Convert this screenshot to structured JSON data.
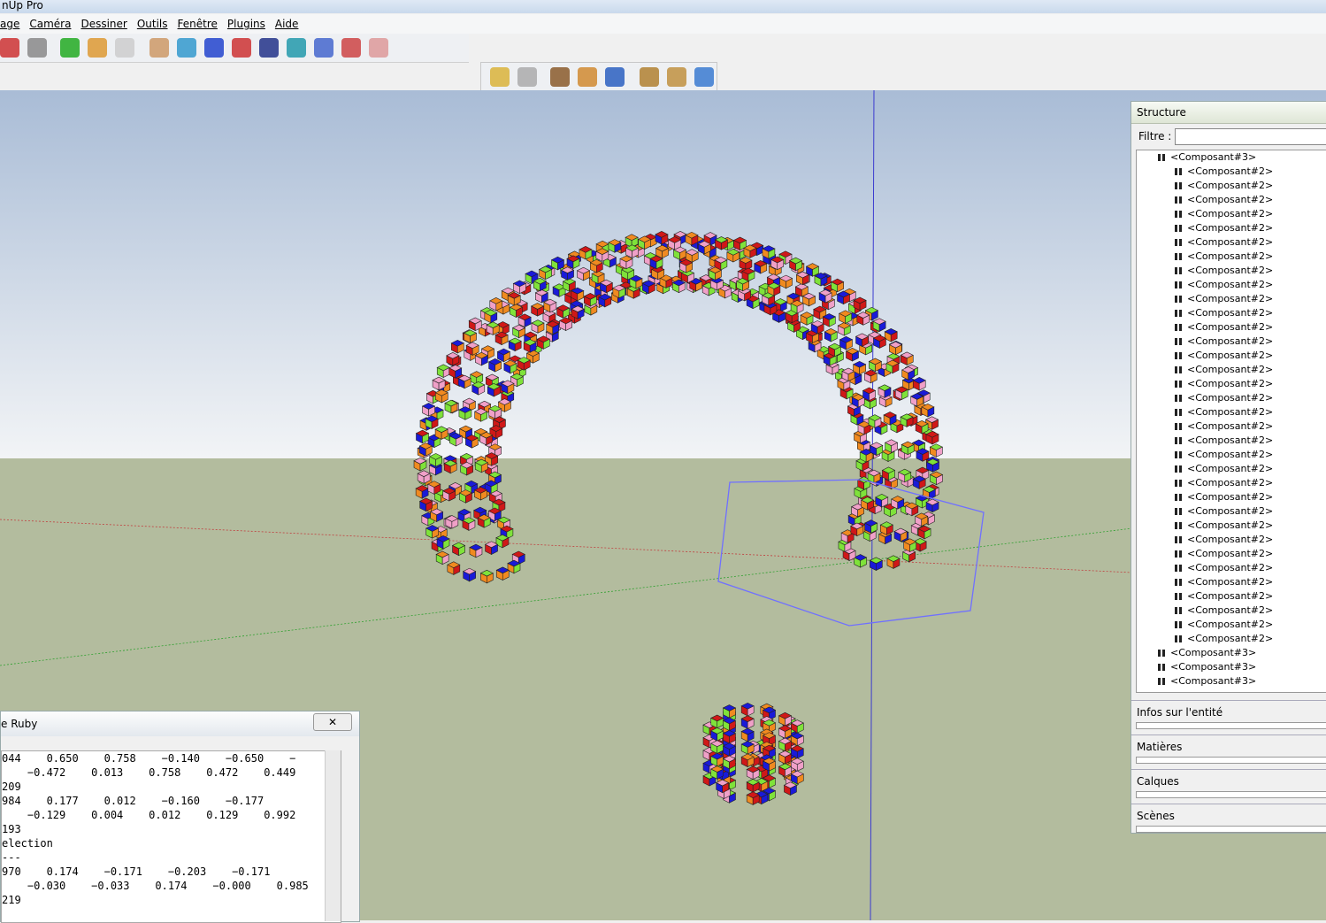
{
  "window": {
    "title": "nUp Pro"
  },
  "menu": {
    "items": [
      "age",
      "Caméra",
      "Dessiner",
      "Outils",
      "Fenêtre",
      "Plugins",
      "Aide"
    ]
  },
  "structure": {
    "title": "Structure",
    "filter_label": "Filtre :"
  },
  "tree": {
    "root": {
      "label": "<Composant#3>",
      "children": [
        "<Composant#2>",
        "<Composant#2>",
        "<Composant#2>",
        "<Composant#2>",
        "<Composant#2>",
        "<Composant#2>",
        "<Composant#2>",
        "<Composant#2>",
        "<Composant#2>",
        "<Composant#2>",
        "<Composant#2>",
        "<Composant#2>",
        "<Composant#2>",
        "<Composant#2>",
        "<Composant#2>",
        "<Composant#2>",
        "<Composant#2>",
        "<Composant#2>",
        "<Composant#2>",
        "<Composant#2>",
        "<Composant#2>",
        "<Composant#2>",
        "<Composant#2>",
        "<Composant#2>",
        "<Composant#2>",
        "<Composant#2>",
        "<Composant#2>",
        "<Composant#2>",
        "<Composant#2>",
        "<Composant#2>",
        "<Composant#2>",
        "<Composant#2>",
        "<Composant#2>",
        "<Composant#2>"
      ]
    },
    "collapsed": [
      "<Composant#3>",
      "<Composant#3>",
      "<Composant#3>"
    ]
  },
  "panels": [
    "Infos sur l'entité",
    "Matières",
    "Calques",
    "Scènes"
  ],
  "console": {
    "title": "e Ruby",
    "lines": [
      "044    0.650    0.758    −0.140    −0.650    −",
      "    −0.472    0.013    0.758    0.472    0.449",
      "209",
      "984    0.177    0.012    −0.160    −0.177",
      "    −0.129    0.004    0.012    0.129    0.992",
      "193",
      "election",
      "---",
      "970    0.174    −0.171    −0.203    −0.171",
      "    −0.030    −0.033    0.174    −0.000    0.985",
      "219"
    ]
  }
}
